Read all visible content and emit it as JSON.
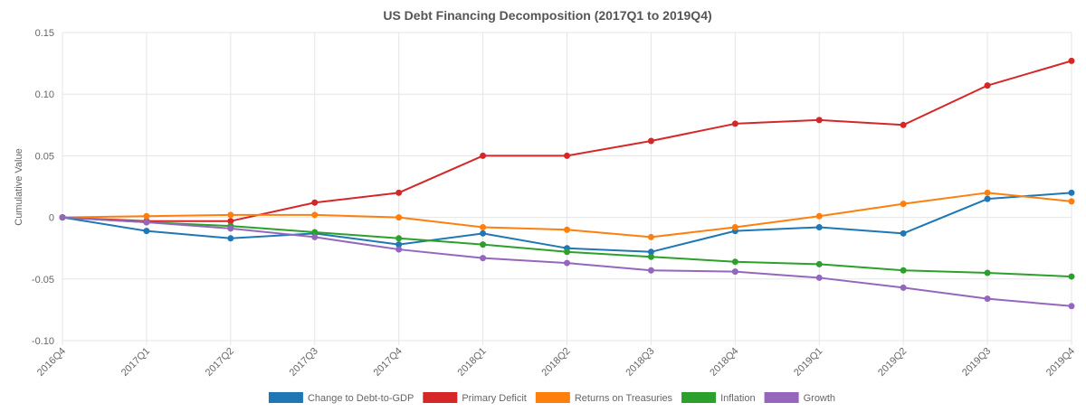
{
  "chart_data": {
    "type": "line",
    "title": "US Debt Financing Decomposition (2017Q1 to 2019Q4)",
    "xlabel": "",
    "ylabel": "Cumulative Value",
    "ylim": [
      -0.1,
      0.15
    ],
    "yticks": [
      {
        "value": 0.15,
        "label": "0.15"
      },
      {
        "value": 0.1,
        "label": "0.10"
      },
      {
        "value": 0.05,
        "label": "0.05"
      },
      {
        "value": 0,
        "label": "0"
      },
      {
        "value": -0.05,
        "label": "-0.05"
      },
      {
        "value": -0.1,
        "label": "-0.10"
      }
    ],
    "grid": true,
    "legend_position": "bottom",
    "categories": [
      "2016Q4",
      "2017Q1",
      "2017Q2",
      "2017Q3",
      "2017Q4",
      "2018Q1",
      "2018Q2",
      "2018Q3",
      "2018Q4",
      "2019Q1",
      "2019Q2",
      "2019Q3",
      "2019Q4"
    ],
    "series": [
      {
        "name": "Change to Debt-to-GDP",
        "color": "#1f77b4",
        "values": [
          0,
          -0.011,
          -0.017,
          -0.013,
          -0.022,
          -0.013,
          -0.025,
          -0.028,
          -0.011,
          -0.008,
          -0.013,
          0.015,
          0.02
        ]
      },
      {
        "name": "Primary Deficit",
        "color": "#d62728",
        "values": [
          0,
          -0.003,
          -0.003,
          0.012,
          0.02,
          0.05,
          0.05,
          0.062,
          0.076,
          0.079,
          0.075,
          0.107,
          0.127
        ]
      },
      {
        "name": "Returns on Treasuries",
        "color": "#ff7f0e",
        "values": [
          0,
          0.001,
          0.002,
          0.002,
          0.0,
          -0.008,
          -0.01,
          -0.016,
          -0.008,
          0.001,
          0.011,
          0.02,
          0.013
        ]
      },
      {
        "name": "Inflation",
        "color": "#2ca02c",
        "values": [
          0,
          -0.004,
          -0.007,
          -0.012,
          -0.017,
          -0.022,
          -0.028,
          -0.032,
          -0.036,
          -0.038,
          -0.043,
          -0.045,
          -0.048
        ]
      },
      {
        "name": "Growth",
        "color": "#9467bd",
        "values": [
          0,
          -0.004,
          -0.009,
          -0.016,
          -0.026,
          -0.033,
          -0.037,
          -0.043,
          -0.044,
          -0.049,
          -0.057,
          -0.066,
          -0.072
        ]
      }
    ]
  }
}
